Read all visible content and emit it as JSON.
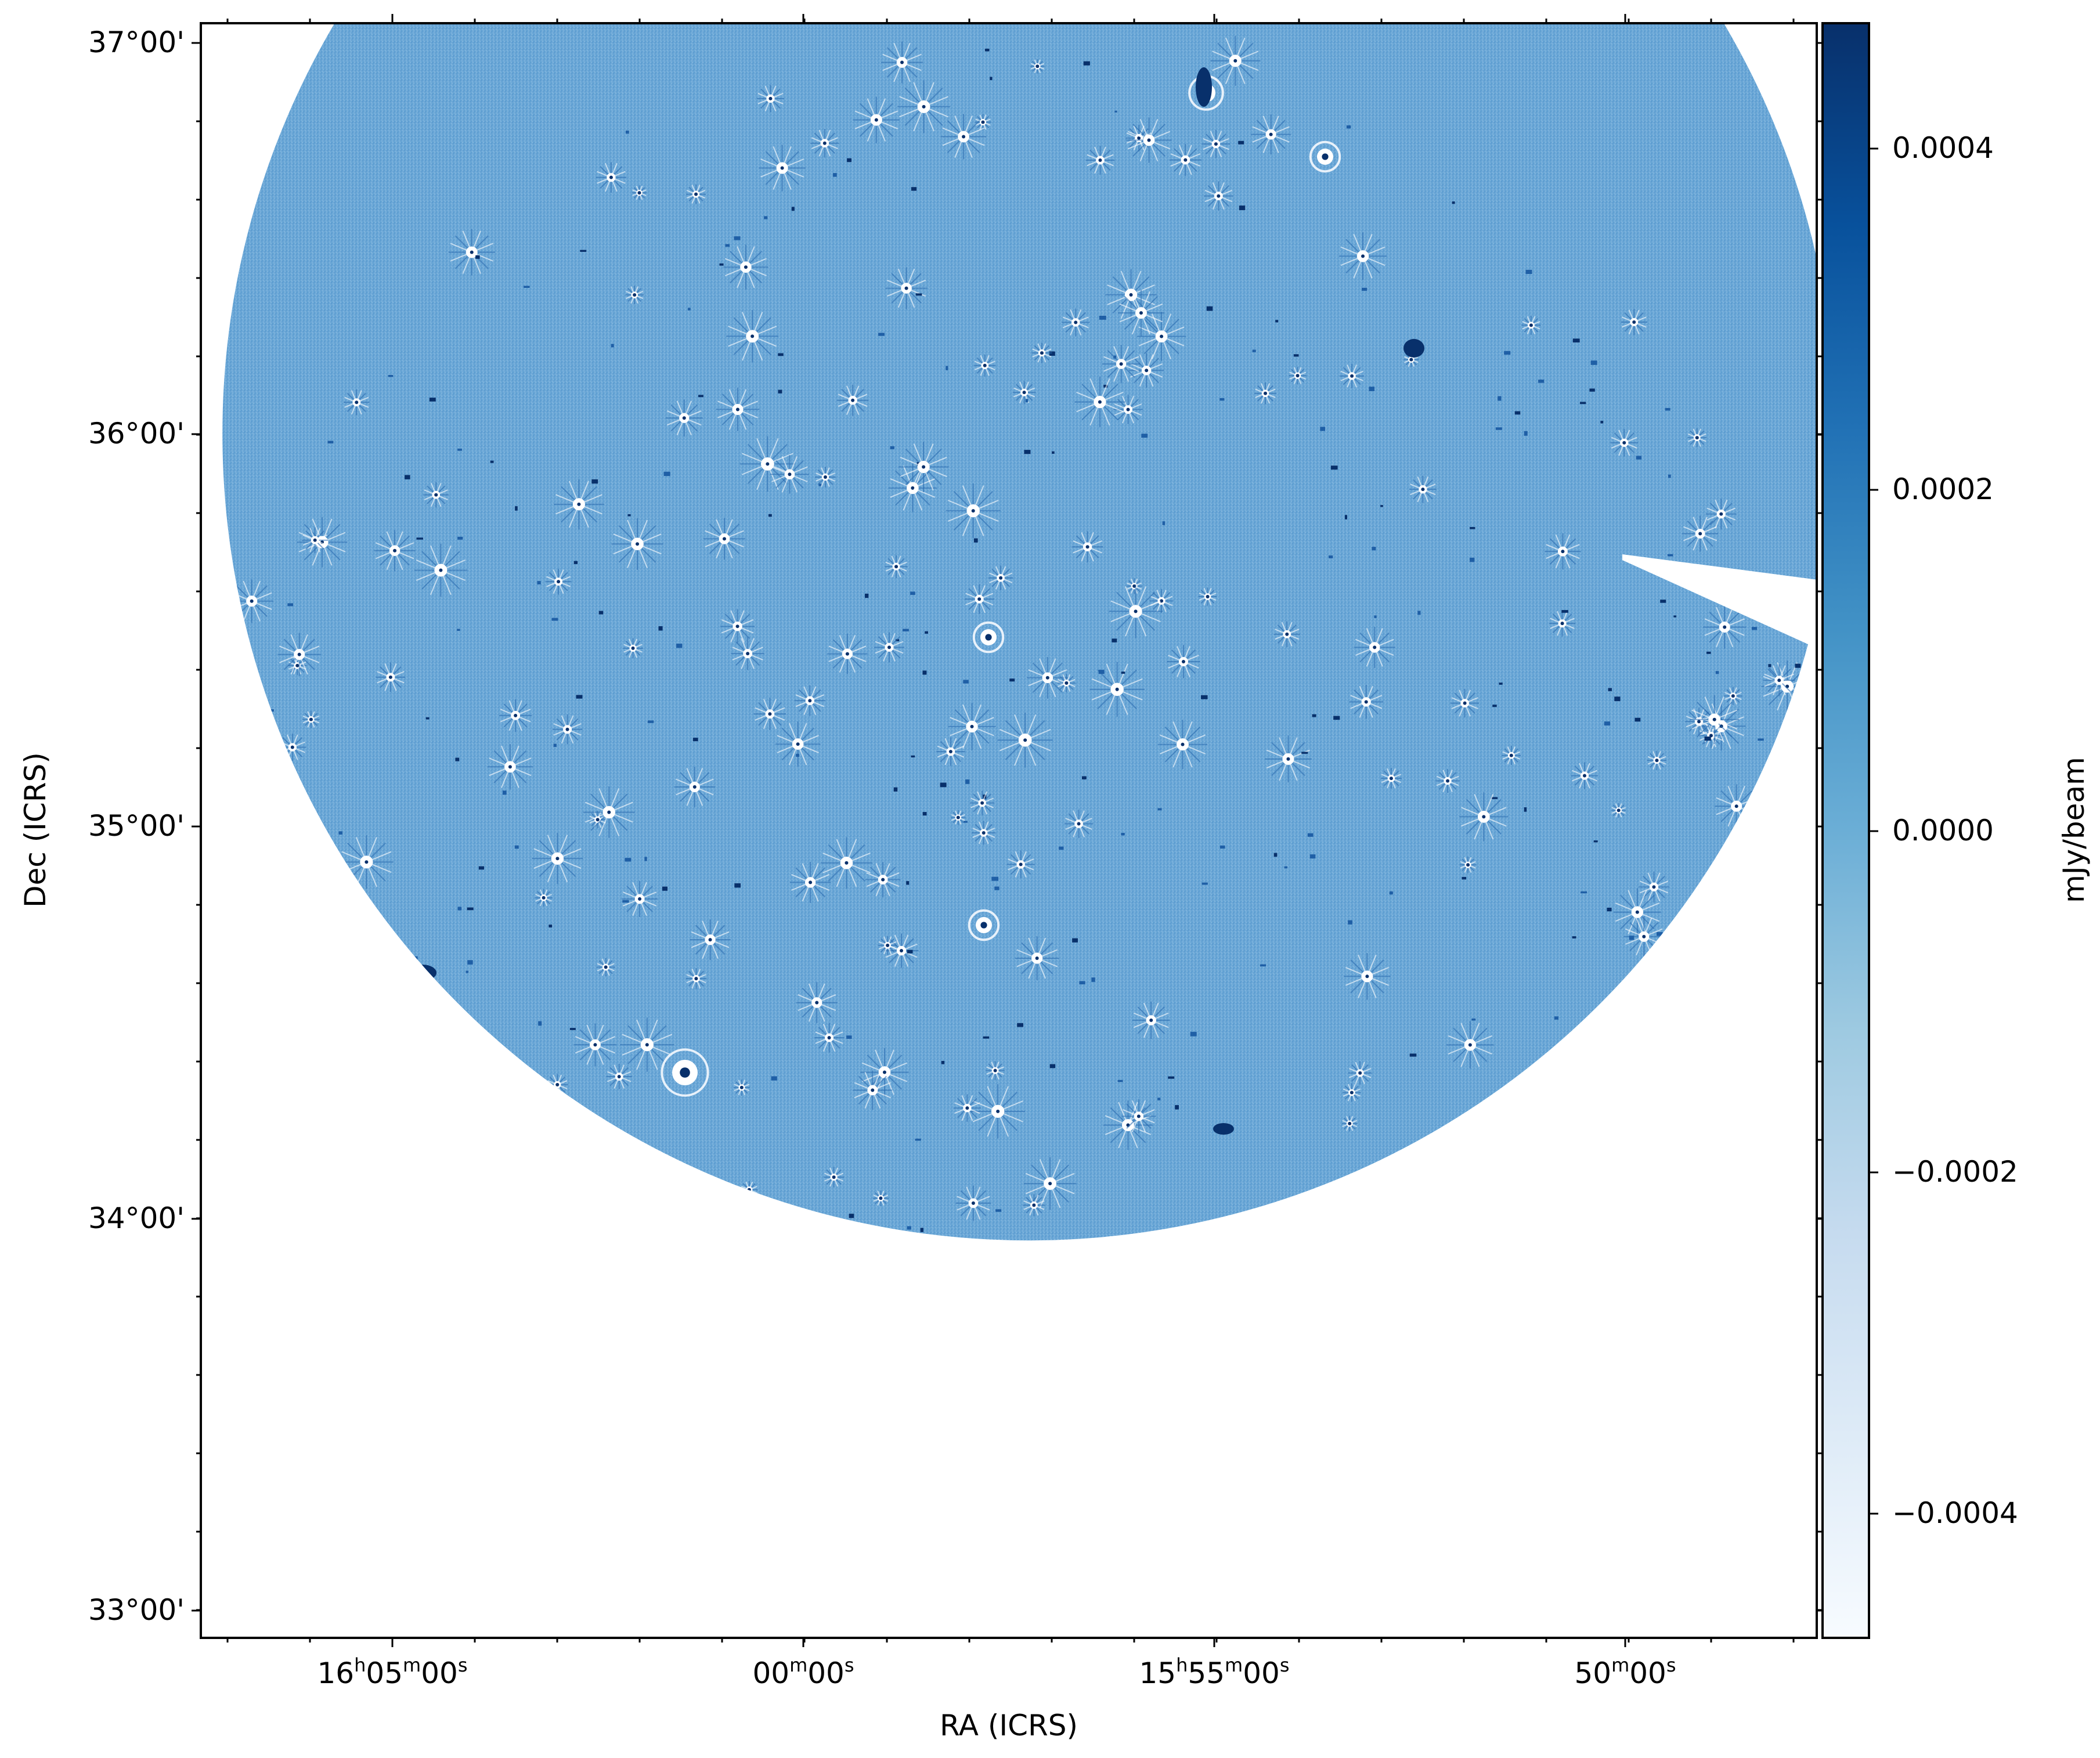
{
  "image_type": "radio continuum sky map",
  "colormap": {
    "name": "Blues",
    "low": "#f7fbff",
    "high": "#08306b",
    "field_color": "#6ba7d6"
  },
  "axes": {
    "xlabel": "RA (ICRS)",
    "ylabel": "Dec (ICRS)",
    "x_ticks": [
      {
        "value": "16h05m00s",
        "h": "16",
        "m": "05",
        "s": "00"
      },
      {
        "value": "16h00m00s",
        "h": "",
        "m": "00",
        "s": "00"
      },
      {
        "value": "15h55m00s",
        "h": "15",
        "m": "55",
        "s": "00"
      },
      {
        "value": "15h50m00s",
        "h": "",
        "m": "50",
        "s": "00"
      }
    ],
    "y_ticks": [
      "37°00'",
      "36°00'",
      "35°00'",
      "34°00'",
      "33°00'"
    ]
  },
  "colorbar": {
    "label": "mJy/beam",
    "ticks": [
      "0.0004",
      "0.0002",
      "0.0000",
      "−0.0002",
      "−0.0004"
    ],
    "range": [
      -0.00047,
      0.00047
    ]
  }
}
